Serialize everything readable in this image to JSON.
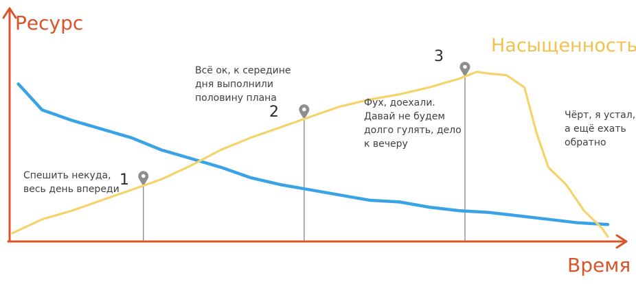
{
  "colors": {
    "axis": "#d9532b",
    "resource_line": "#3aa3e6",
    "saturation_line": "#f5d36a",
    "marker": "#8e8e8e",
    "text": "#3f3f3f",
    "saturation_label": "#f2c14e"
  },
  "labels": {
    "y_axis": "Ресурс",
    "x_axis": "Время",
    "saturation": "Насыщенность"
  },
  "markers": [
    {
      "num": "1",
      "x": 0.22
    },
    {
      "num": "2",
      "x": 0.49
    },
    {
      "num": "3",
      "x": 0.76
    }
  ],
  "notes": [
    {
      "text": "Спешить некуда,\nвесь день впереди"
    },
    {
      "text": "Всё ок, к середине\nдня выполнили\nполовину плана"
    },
    {
      "text": "Фух, доехали.\nДавай не будем\nдолго гулять, дело\nк вечеру"
    },
    {
      "text": "Чёрт, я устал,\nа ещё ехать\nобратно"
    }
  ],
  "chart_data": {
    "type": "line",
    "series": [
      {
        "name": "Ресурс",
        "color": "#3aa3e6",
        "x": [
          0.01,
          0.05,
          0.1,
          0.15,
          0.2,
          0.25,
          0.3,
          0.35,
          0.4,
          0.45,
          0.5,
          0.55,
          0.6,
          0.65,
          0.7,
          0.75,
          0.8,
          0.85,
          0.9,
          0.95,
          1.0
        ],
        "y": [
          0.88,
          0.73,
          0.67,
          0.62,
          0.57,
          0.5,
          0.45,
          0.4,
          0.34,
          0.3,
          0.27,
          0.24,
          0.21,
          0.2,
          0.17,
          0.15,
          0.14,
          0.12,
          0.1,
          0.08,
          0.07
        ]
      },
      {
        "name": "Насыщенность",
        "color": "#f5d36a",
        "x": [
          0.0,
          0.05,
          0.1,
          0.15,
          0.2,
          0.25,
          0.3,
          0.35,
          0.4,
          0.45,
          0.5,
          0.55,
          0.6,
          0.65,
          0.7,
          0.75,
          0.78,
          0.8,
          0.83,
          0.86,
          0.88,
          0.9,
          0.93,
          0.96,
          0.99,
          1.0
        ],
        "y": [
          0.02,
          0.1,
          0.15,
          0.21,
          0.27,
          0.33,
          0.41,
          0.5,
          0.57,
          0.63,
          0.69,
          0.75,
          0.79,
          0.82,
          0.86,
          0.91,
          0.95,
          0.94,
          0.93,
          0.86,
          0.6,
          0.4,
          0.3,
          0.15,
          0.05,
          0.0
        ]
      }
    ],
    "xlabel": "Время",
    "ylabel": "Ресурс",
    "xlim": [
      0,
      1
    ],
    "ylim": [
      0,
      1
    ],
    "grid": false
  }
}
